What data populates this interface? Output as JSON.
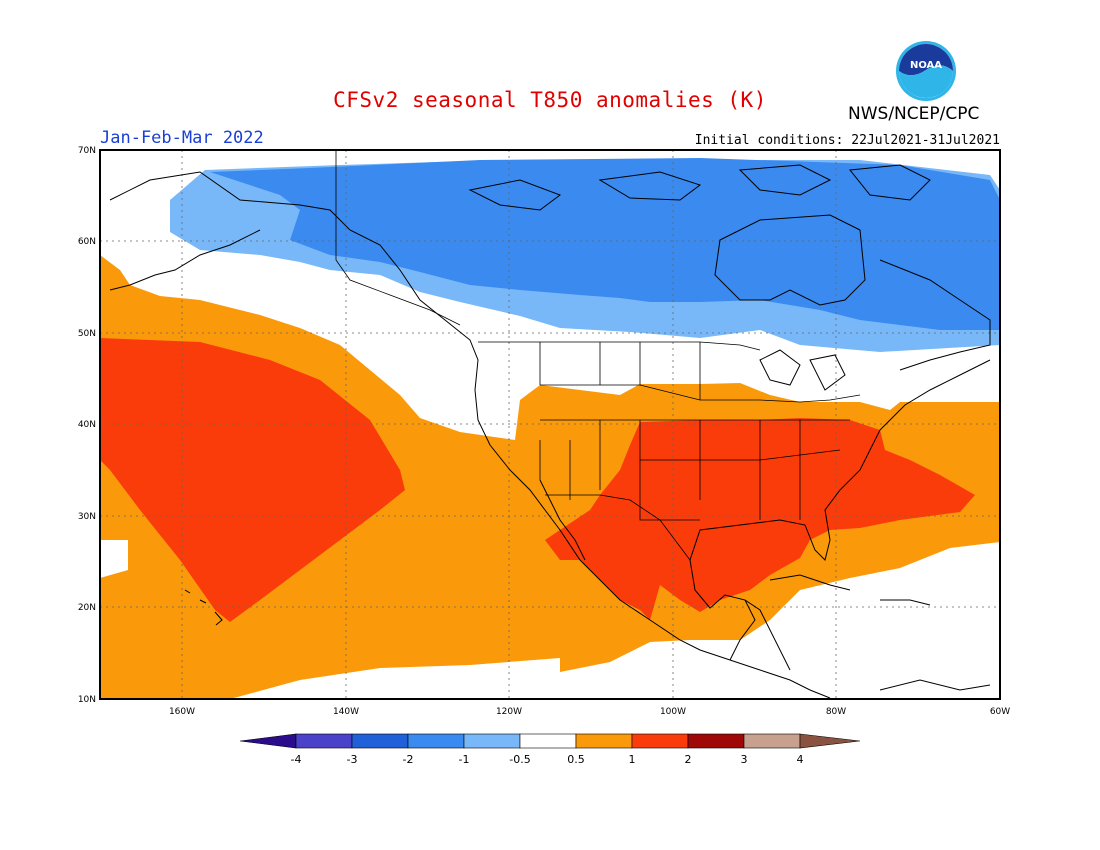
{
  "title": "CFSv2 seasonal T850 anomalies (K)",
  "organization": "NWS/NCEP/CPC",
  "logo_text": "NOAA",
  "season": "Jan-Feb-Mar 2022",
  "initial_conditions": "Initial conditions: 22Jul2021-31Jul2021",
  "map": {
    "lon_range": [
      -170,
      -60
    ],
    "lat_range": [
      10,
      70
    ],
    "lat_ticks": [
      "70N",
      "60N",
      "50N",
      "40N",
      "30N",
      "20N",
      "10N"
    ],
    "lon_ticks": [
      "160W",
      "140W",
      "120W",
      "100W",
      "80W",
      "60W"
    ],
    "gridlines": "dotted"
  },
  "colorbar": {
    "labels": [
      "-4",
      "-3",
      "-2",
      "-1",
      "-0.5",
      "0.5",
      "1",
      "2",
      "3",
      "4"
    ],
    "colors": [
      "#2a0c8c",
      "#4a42c8",
      "#2060d8",
      "#3a8af0",
      "#78b8f8",
      "#ffffff",
      "#fa9a0a",
      "#fa3c0a",
      "#a00808",
      "#c8a090",
      "#8a5240"
    ]
  },
  "anomaly_colors": {
    "cold_1": "#3a8af0",
    "cold_05": "#78b8f8",
    "neutral": "#ffffff",
    "warm_05": "#fa9a0a",
    "warm_1": "#fa3c0a"
  }
}
